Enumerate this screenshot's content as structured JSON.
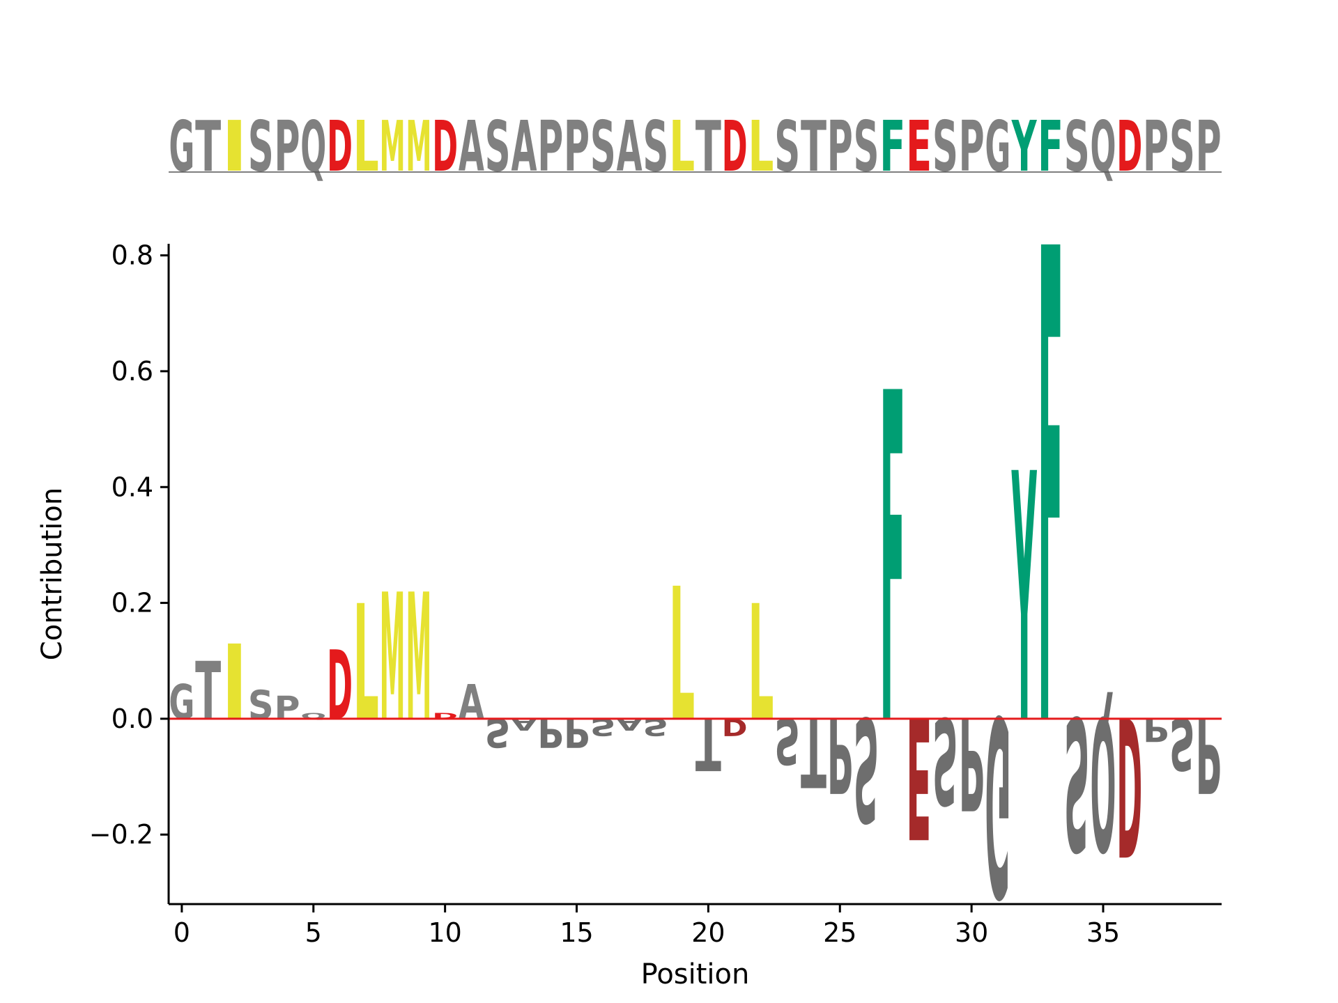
{
  "chart_data": {
    "type": "sequence-logo",
    "title": "",
    "xlabel": "Position",
    "ylabel": "Contribution",
    "xlim": [
      -0.5,
      39.5
    ],
    "ylim": [
      -0.32,
      0.82
    ],
    "xticks": [
      0,
      5,
      10,
      15,
      20,
      25,
      30,
      35
    ],
    "yticks": [
      -0.2,
      0.0,
      0.2,
      0.4,
      0.6,
      0.8
    ],
    "ytick_labels": [
      "−0.2",
      "0.0",
      "0.2",
      "0.4",
      "0.6",
      "0.8"
    ],
    "xtick_labels": [
      "0",
      "5",
      "10",
      "15",
      "20",
      "25",
      "30",
      "35"
    ],
    "sequence": [
      "G",
      "T",
      "I",
      "S",
      "P",
      "Q",
      "D",
      "L",
      "M",
      "M",
      "D",
      "A",
      "S",
      "A",
      "P",
      "P",
      "S",
      "A",
      "S",
      "L",
      "T",
      "D",
      "L",
      "S",
      "T",
      "P",
      "S",
      "F",
      "E",
      "S",
      "P",
      "G",
      "Y",
      "F",
      "S",
      "Q",
      "D",
      "P",
      "S",
      "P"
    ],
    "contributions": [
      0.06,
      0.1,
      0.13,
      0.05,
      0.04,
      0.01,
      0.12,
      0.2,
      0.22,
      0.22,
      0.01,
      0.06,
      -0.05,
      -0.02,
      -0.05,
      -0.05,
      -0.03,
      -0.02,
      -0.03,
      0.23,
      -0.09,
      -0.03,
      0.2,
      -0.08,
      -0.12,
      -0.13,
      -0.18,
      0.57,
      -0.21,
      -0.15,
      -0.16,
      -0.31,
      0.43,
      0.82,
      -0.23,
      -0.23,
      -0.24,
      -0.04,
      -0.09,
      -0.13
    ],
    "zero_line_color": "#e41a1c",
    "colors": {
      "hydrophobic": "#e6e231",
      "acidic": "#e41a1c",
      "acidic_negative": "#a52a2a",
      "aromatic": "#009e73",
      "other": "#808080",
      "other_negative": "#6e6e6e"
    },
    "residue_classes": {
      "hydrophobic": [
        "I",
        "L",
        "M",
        "V"
      ],
      "acidic": [
        "D",
        "E"
      ],
      "aromatic": [
        "F",
        "Y",
        "W"
      ]
    }
  }
}
